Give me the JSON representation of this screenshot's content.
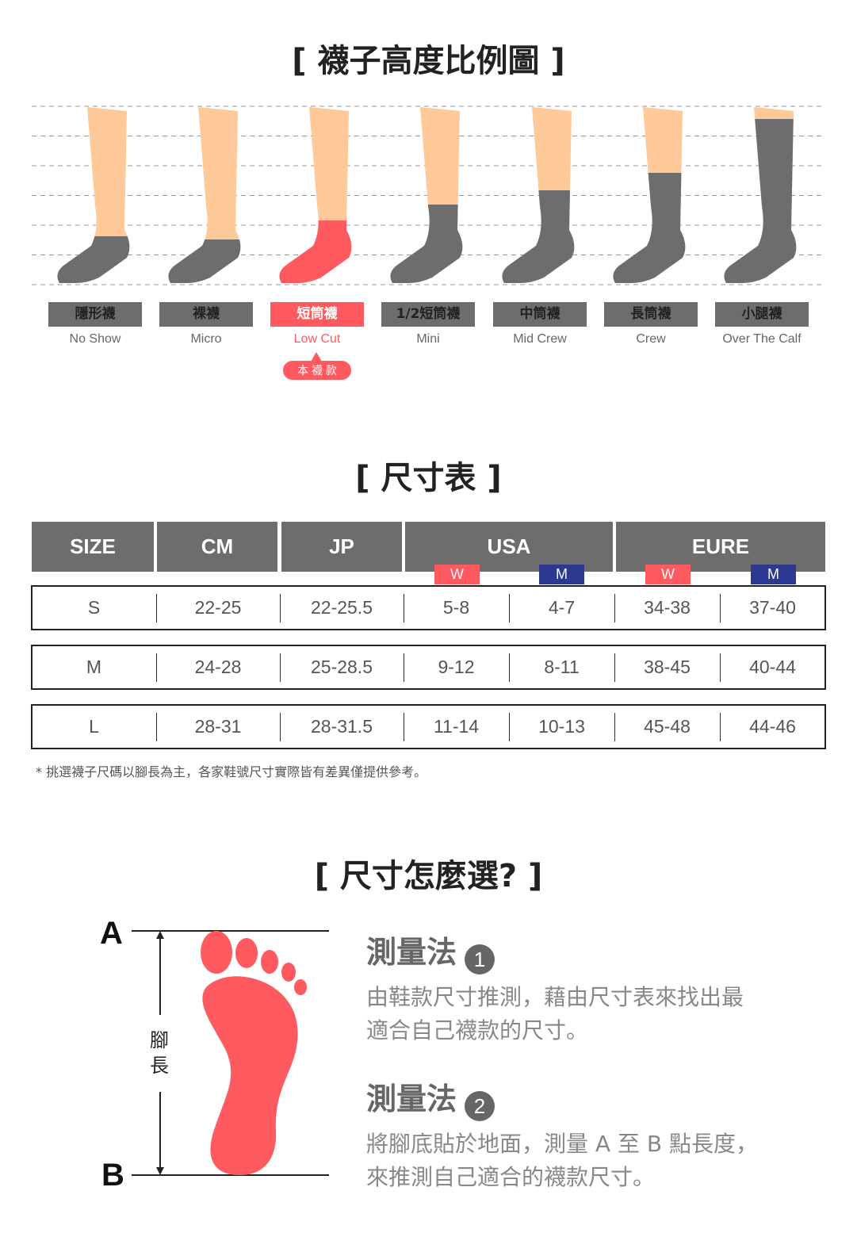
{
  "sock_section": {
    "title": "[ 襪子高度比例圖 ]",
    "types": [
      {
        "zh": "隱形襪",
        "en": "No Show"
      },
      {
        "zh": "裸襪",
        "en": "Micro"
      },
      {
        "zh": "短筒襪",
        "en": "Low Cut",
        "active": true
      },
      {
        "zh": "1/2短筒襪",
        "en": "Mini"
      },
      {
        "zh": "中筒襪",
        "en": "Mid Crew"
      },
      {
        "zh": "長筒襪",
        "en": "Crew"
      },
      {
        "zh": "小腿襪",
        "en": "Over The Calf"
      }
    ],
    "current_badge": "本 襪 款",
    "colors": {
      "skin": "#ffc99a",
      "sock": "#6d6d6d",
      "accent": "#ff5a5f"
    }
  },
  "size_section": {
    "title": "[ 尺寸表 ]",
    "headers": [
      "SIZE",
      "CM",
      "JP",
      "USA",
      "EURE"
    ],
    "sub": {
      "w": "W",
      "m": "M"
    },
    "colors": {
      "w": "#ff5a5f",
      "m": "#2b3990"
    },
    "rows": [
      [
        "S",
        "22-25",
        "22-25.5",
        "5-8",
        "4-7",
        "34-38",
        "37-40"
      ],
      [
        "M",
        "24-28",
        "25-28.5",
        "9-12",
        "8-11",
        "38-45",
        "40-44"
      ],
      [
        "L",
        "28-31",
        "28-31.5",
        "11-14",
        "10-13",
        "45-48",
        "44-46"
      ]
    ],
    "note": "* 挑選襪子尺碼以腳長為主，各家鞋號尺寸實際皆有差異僅提供參考。"
  },
  "measure_section": {
    "title": "[ 尺寸怎麼選? ]",
    "point_a": "A",
    "point_b": "B",
    "foot_length": "腳長",
    "methods": [
      {
        "title": "測量法",
        "num": "1",
        "text1": "由鞋款尺寸推測，藉由尺寸表來找出最",
        "text2": "適合自己襪款的尺寸。"
      },
      {
        "title": "測量法",
        "num": "2",
        "text1": "將腳底貼於地面，測量 A 至 B 點長度，",
        "text2": "來推測自己適合的襪款尺寸。"
      }
    ]
  }
}
